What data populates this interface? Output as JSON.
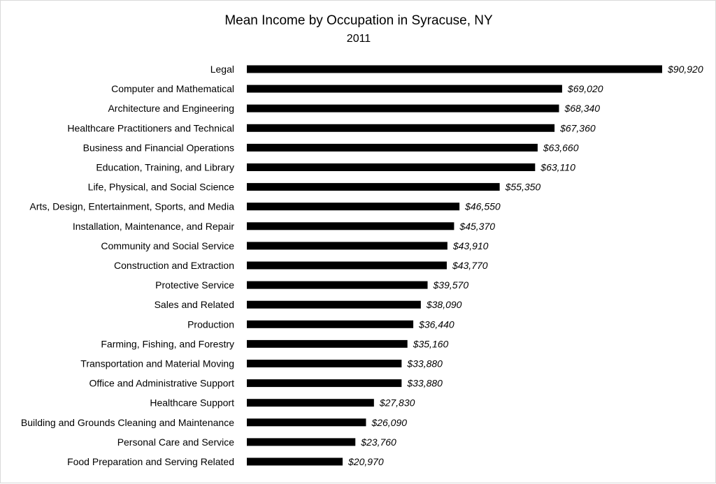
{
  "chart_data": {
    "type": "bar",
    "orientation": "horizontal",
    "title": "Mean Income by Occupation in Syracuse, NY",
    "subtitle": "2011",
    "xlabel": "",
    "ylabel": "",
    "xlim": [
      0,
      90920
    ],
    "grid": false,
    "legend": "none",
    "bar_color": "#000000",
    "value_format": "currency-usd-italic",
    "categories": [
      "Legal",
      "Computer and Mathematical",
      "Architecture and Engineering",
      "Healthcare Practitioners and Technical",
      "Business and Financial Operations",
      "Education, Training, and Library",
      "Life, Physical, and Social Science",
      "Arts, Design, Entertainment, Sports, and Media",
      "Installation, Maintenance, and Repair",
      "Community and Social Service",
      "Construction and Extraction",
      "Protective Service",
      "Sales and Related",
      "Production",
      "Farming, Fishing, and Forestry",
      "Transportation and Material Moving",
      "Office and Administrative Support",
      "Healthcare Support",
      "Building and Grounds Cleaning and Maintenance",
      "Personal Care and Service",
      "Food Preparation and Serving Related"
    ],
    "values": [
      90920,
      69020,
      68340,
      67360,
      63660,
      63110,
      55350,
      46550,
      45370,
      43910,
      43770,
      39570,
      38090,
      36440,
      35160,
      33880,
      33880,
      27830,
      26090,
      23760,
      20970
    ],
    "value_labels": [
      "$90,920",
      "$69,020",
      "$68,340",
      "$67,360",
      "$63,660",
      "$63,110",
      "$55,350",
      "$46,550",
      "$45,370",
      "$43,910",
      "$43,770",
      "$39,570",
      "$38,090",
      "$36,440",
      "$35,160",
      "$33,880",
      "$33,880",
      "$27,830",
      "$26,090",
      "$23,760",
      "$20,970"
    ]
  }
}
